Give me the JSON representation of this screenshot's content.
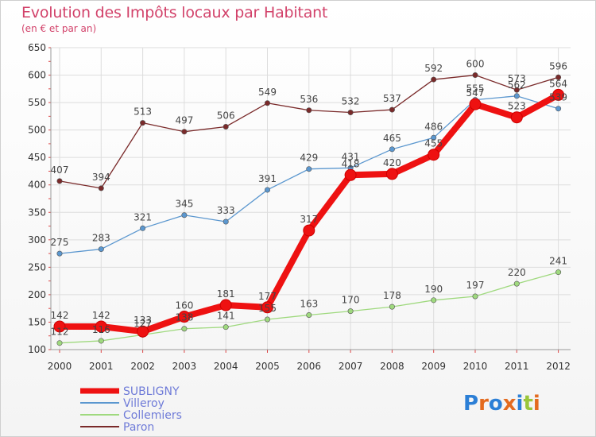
{
  "chart_data": {
    "type": "line",
    "title": "Evolution des Impôts locaux par Habitant",
    "subtitle": "(en € et par an)",
    "xlabel": "",
    "ylabel": "",
    "ylim": [
      100,
      650
    ],
    "yticks": [
      100,
      150,
      200,
      250,
      300,
      350,
      400,
      450,
      500,
      550,
      600,
      650
    ],
    "categories": [
      "2000",
      "2001",
      "2002",
      "2003",
      "2004",
      "2005",
      "2006",
      "2007",
      "2008",
      "2009",
      "2010",
      "2011",
      "2012"
    ],
    "series": [
      {
        "name": "SUBLIGNY",
        "color": "#ee1111",
        "values": [
          142,
          142,
          133,
          160,
          181,
          177,
          317,
          418,
          420,
          455,
          547,
          523,
          564
        ]
      },
      {
        "name": "Villeroy",
        "color": "#5b97cf",
        "values": [
          275,
          283,
          321,
          345,
          333,
          391,
          429,
          431,
          465,
          486,
          555,
          562,
          539
        ]
      },
      {
        "name": "Collemiers",
        "color": "#9fd97e",
        "values": [
          112,
          116,
          127,
          138,
          141,
          155,
          163,
          170,
          178,
          190,
          197,
          220,
          241
        ]
      },
      {
        "name": "Paron",
        "color": "#7a2a2a",
        "values": [
          407,
          394,
          513,
          497,
          506,
          549,
          536,
          532,
          537,
          592,
          600,
          573,
          596
        ]
      }
    ],
    "legend_position": "bottom-left"
  },
  "logo_text": "Proxiti"
}
